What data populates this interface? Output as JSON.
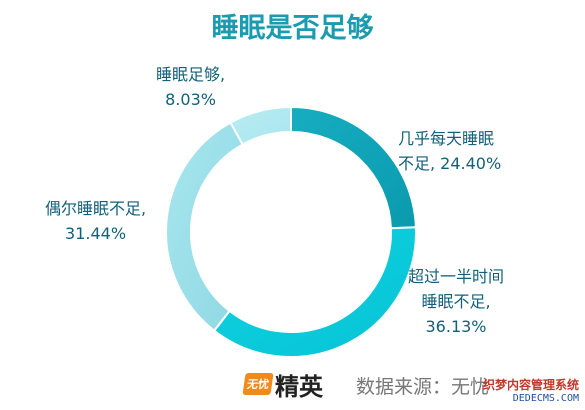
{
  "chart_data": {
    "type": "pie",
    "title": "睡眠是否足够",
    "categories": [
      "几乎每天睡眠不足",
      "超过一半时间睡眠不足",
      "偶尔睡眠不足",
      "睡眠足够"
    ],
    "values": [
      24.4,
      36.13,
      31.44,
      8.03
    ],
    "labels": [
      {
        "line1": "几乎每天睡眠",
        "line2": "不足, 24.40%"
      },
      {
        "line1": "超过一半时间",
        "line2": "睡眠不足,",
        "line3": "36.13%"
      },
      {
        "line1": "偶尔睡眠不足,",
        "line2": "31.44%"
      },
      {
        "line1": "睡眠足够,",
        "line2": "8.03%"
      }
    ],
    "colors": [
      [
        "#17adc0",
        "#0a9aae"
      ],
      [
        "#0fd3e2",
        "#07c3d4"
      ],
      [
        "#a8e6ee",
        "#8fd8e3"
      ],
      [
        "#b8ecf2",
        "#a9e6ee"
      ]
    ],
    "donut": true
  },
  "footer": {
    "logo_badge": "无忧",
    "logo_text": "精英",
    "source": "数据来源：无忧"
  },
  "watermark": {
    "cn": "织梦内容管理系统",
    "en": "DEDECMS.COM"
  }
}
